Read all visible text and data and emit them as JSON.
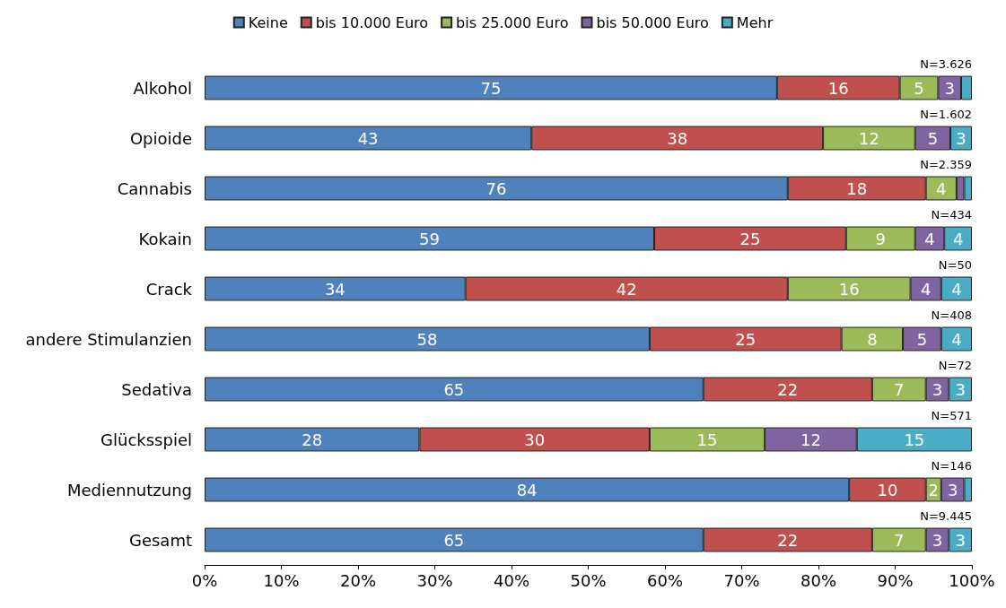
{
  "chart_data": {
    "type": "bar",
    "orientation": "horizontal",
    "stacked": true,
    "legend": "top",
    "grid": false,
    "categories": [
      "Alkohol",
      "Opioide",
      "Cannabis",
      "Kokain",
      "Crack",
      "andere Stimulanzien",
      "Sedativa",
      "Glücksspiel",
      "Mediennutzung",
      "Gesamt"
    ],
    "xlim": [
      0,
      100
    ],
    "xticks": [
      {
        "value": 0,
        "label": "0%"
      },
      {
        "value": 10,
        "label": "10%"
      },
      {
        "value": 20,
        "label": "20%"
      },
      {
        "value": 30,
        "label": "30%"
      },
      {
        "value": 40,
        "label": "40%"
      },
      {
        "value": 50,
        "label": "50%"
      },
      {
        "value": 60,
        "label": "60%"
      },
      {
        "value": 70,
        "label": "70%"
      },
      {
        "value": 80,
        "label": "80%"
      },
      {
        "value": 90,
        "label": "90%"
      },
      {
        "value": 100,
        "label": "100%"
      }
    ],
    "series": [
      {
        "name": "Keine",
        "color": "#4f81bd",
        "values": [
          74.6,
          42.6,
          76,
          58.6,
          34,
          58,
          65,
          28,
          84,
          65
        ],
        "value_labels": [
          "75",
          "43",
          "76",
          "59",
          "34",
          "58",
          "65",
          "28",
          "84",
          "65"
        ]
      },
      {
        "name": "bis 10.000 Euro",
        "color": "#c0504d",
        "values": [
          16,
          38,
          18,
          25,
          42,
          25,
          22,
          30,
          10,
          22
        ],
        "value_labels": [
          "16",
          "38",
          "18",
          "25",
          "42",
          "25",
          "22",
          "30",
          "10",
          "22"
        ]
      },
      {
        "name": "bis 25.000 Euro",
        "color": "#9bbb59",
        "values": [
          5,
          12,
          4,
          9,
          16,
          8,
          7,
          15,
          2,
          7
        ],
        "value_labels": [
          "5",
          "12",
          "4",
          "9",
          "16",
          "8",
          "7",
          "15",
          "2",
          "7"
        ]
      },
      {
        "name": "bis 50.000 Euro",
        "color": "#8064a2",
        "values": [
          3,
          4.6,
          1,
          3.8,
          4,
          5,
          3,
          12,
          3,
          3
        ],
        "value_labels": [
          "3",
          "5",
          null,
          "4",
          "4",
          "5",
          "3",
          "12",
          "3",
          "3"
        ]
      },
      {
        "name": "Mehr",
        "color": "#4bacc6",
        "values": [
          1.4,
          2.8,
          1,
          3.6,
          4,
          4,
          3,
          15,
          1,
          3
        ],
        "value_labels": [
          null,
          "3",
          null,
          "4",
          "4",
          "4",
          "3",
          "15",
          null,
          "3"
        ]
      }
    ],
    "annotations": [
      "N=3.626",
      "N=1.602",
      "N=2.359",
      "N=434",
      "N=50",
      "N=408",
      "N=72",
      "N=571",
      "N=146",
      "N=9.445"
    ]
  }
}
